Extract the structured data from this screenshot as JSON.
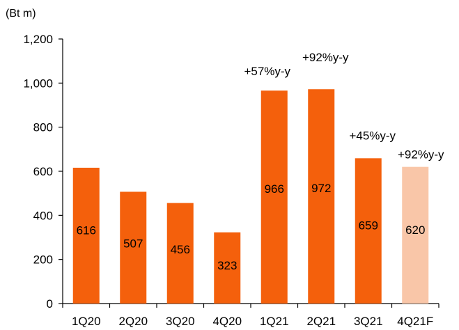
{
  "chart_data": {
    "type": "bar",
    "unit_label": "(Bt m)",
    "categories": [
      "1Q20",
      "2Q20",
      "3Q20",
      "4Q20",
      "1Q21",
      "2Q21",
      "3Q21",
      "4Q21F"
    ],
    "values": [
      616,
      507,
      456,
      323,
      966,
      972,
      659,
      620
    ],
    "data_labels": [
      "616",
      "507",
      "456",
      "323",
      "966",
      "972",
      "659",
      "620"
    ],
    "annotations": [
      "",
      "",
      "",
      "",
      "+57%y-y",
      "+92%y-y",
      "+45%y-y",
      "+92%y-y"
    ],
    "forecast": [
      false,
      false,
      false,
      false,
      false,
      false,
      false,
      true
    ],
    "ylim": [
      0,
      1200
    ],
    "yticks": [
      0,
      200,
      400,
      600,
      800,
      1000,
      1200
    ],
    "ytick_labels": [
      "0",
      "200",
      "400",
      "600",
      "800",
      "1,000",
      "1,200"
    ],
    "grid": false,
    "colors": {
      "actual": "#F4600C",
      "forecast": "#F9C6A8",
      "axis": "#000000"
    }
  }
}
